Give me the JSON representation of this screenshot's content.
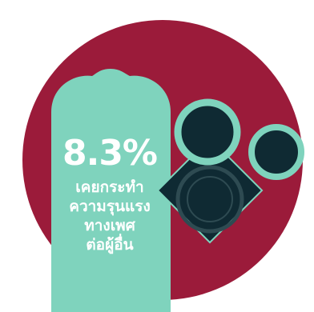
{
  "stat": {
    "value": "8.3%",
    "caption_lines": [
      "เคยกระทำ",
      "ความรุนแรง",
      "ทางเพศ",
      "ต่อผู้อื่น"
    ]
  },
  "colors": {
    "circle": "#9b1b3a",
    "condom": "#7fd3bd",
    "dark": "#0f2a33",
    "ring_outline": "#7fd3bd",
    "text": "#ffffff"
  },
  "icons": [
    "background-circle",
    "condom-shape",
    "condom-wrapper-diamond",
    "condom-ring-icon"
  ]
}
